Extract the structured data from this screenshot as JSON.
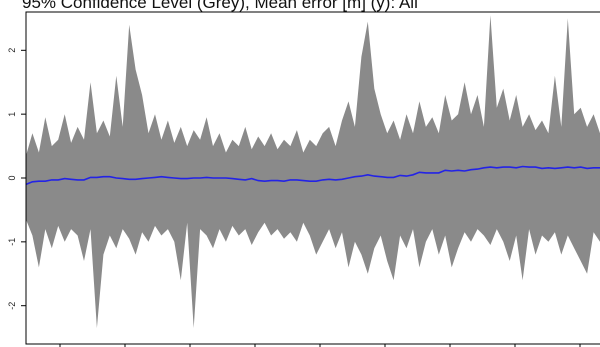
{
  "chart_data": {
    "type": "area",
    "title": "95% Confidence Level (Grey), Mean error [m] (y): All",
    "xlabel": "",
    "ylabel": "",
    "ylim": [
      -2.6,
      2.6
    ],
    "y_ticks": [
      2,
      1,
      0,
      -1,
      -2
    ],
    "y_tick_labels": [
      "2",
      "1",
      "0",
      "-1",
      "-2"
    ],
    "grid": false,
    "colors": {
      "band": "#8a8a8a",
      "mean": "#2323e6",
      "axis": "#000000"
    },
    "series": [
      {
        "name": "95% confidence upper",
        "values": [
          0.35,
          0.7,
          0.4,
          0.95,
          0.5,
          0.6,
          1.0,
          0.55,
          0.8,
          0.6,
          1.5,
          0.7,
          0.9,
          0.65,
          1.6,
          0.8,
          2.4,
          1.7,
          1.3,
          0.7,
          1.0,
          0.6,
          0.9,
          0.55,
          0.8,
          0.5,
          0.75,
          0.6,
          0.95,
          0.5,
          0.7,
          0.4,
          0.6,
          0.5,
          0.8,
          0.45,
          0.65,
          0.5,
          0.7,
          0.45,
          0.6,
          0.5,
          0.75,
          0.4,
          0.6,
          0.5,
          0.7,
          0.8,
          0.5,
          0.9,
          1.2,
          0.8,
          1.9,
          2.45,
          1.4,
          1.0,
          0.7,
          0.9,
          0.6,
          1.0,
          0.7,
          1.2,
          0.8,
          0.95,
          0.7,
          1.3,
          0.9,
          1.0,
          1.5,
          1.0,
          1.3,
          0.8,
          2.55,
          1.1,
          1.4,
          0.9,
          1.3,
          0.8,
          1.0,
          0.75,
          0.9,
          0.7,
          1.6,
          0.8,
          2.5,
          1.0,
          1.1,
          0.8,
          1.0,
          0.7
        ]
      },
      {
        "name": "95% confidence lower",
        "values": [
          -0.65,
          -0.9,
          -1.4,
          -0.8,
          -1.1,
          -0.75,
          -1.0,
          -0.8,
          -0.9,
          -1.3,
          -0.8,
          -2.35,
          -1.2,
          -0.9,
          -1.1,
          -0.8,
          -0.95,
          -1.2,
          -0.85,
          -1.0,
          -0.75,
          -0.9,
          -0.8,
          -1.0,
          -1.6,
          -0.7,
          -2.35,
          -0.8,
          -0.9,
          -1.1,
          -0.8,
          -1.0,
          -0.75,
          -0.9,
          -0.8,
          -1.05,
          -0.85,
          -0.7,
          -0.9,
          -0.8,
          -0.95,
          -0.85,
          -1.0,
          -0.7,
          -0.9,
          -1.2,
          -1.0,
          -0.8,
          -1.1,
          -0.85,
          -1.4,
          -1.0,
          -1.2,
          -1.5,
          -1.1,
          -0.9,
          -1.3,
          -1.6,
          -0.9,
          -1.1,
          -0.8,
          -1.4,
          -1.0,
          -0.8,
          -1.2,
          -0.9,
          -1.4,
          -1.1,
          -0.85,
          -1.0,
          -0.8,
          -0.9,
          -1.05,
          -0.8,
          -1.0,
          -1.3,
          -0.9,
          -1.6,
          -0.8,
          -1.2,
          -0.9,
          -1.0,
          -0.85,
          -1.2,
          -0.9,
          -1.1,
          -1.3,
          -1.5,
          -0.85,
          -1.0
        ]
      },
      {
        "name": "Mean error",
        "values": [
          -0.1,
          -0.06,
          -0.05,
          -0.05,
          -0.03,
          -0.03,
          -0.01,
          -0.02,
          -0.03,
          -0.03,
          0.01,
          0.01,
          0.02,
          0.02,
          0.0,
          -0.01,
          -0.02,
          -0.02,
          -0.01,
          0.0,
          0.01,
          0.02,
          0.01,
          0.0,
          -0.01,
          -0.01,
          0.0,
          0.0,
          0.01,
          0.0,
          0.0,
          0.0,
          -0.01,
          -0.02,
          -0.03,
          -0.01,
          -0.04,
          -0.05,
          -0.04,
          -0.04,
          -0.05,
          -0.03,
          -0.03,
          -0.04,
          -0.05,
          -0.05,
          -0.03,
          -0.02,
          -0.03,
          -0.02,
          0.0,
          0.02,
          0.03,
          0.05,
          0.03,
          0.02,
          0.01,
          0.01,
          0.04,
          0.03,
          0.05,
          0.09,
          0.08,
          0.08,
          0.08,
          0.12,
          0.11,
          0.12,
          0.11,
          0.13,
          0.14,
          0.16,
          0.17,
          0.16,
          0.17,
          0.17,
          0.16,
          0.18,
          0.17,
          0.17,
          0.15,
          0.16,
          0.15,
          0.16,
          0.17,
          0.16,
          0.17,
          0.15,
          0.16,
          0.16
        ]
      }
    ]
  }
}
